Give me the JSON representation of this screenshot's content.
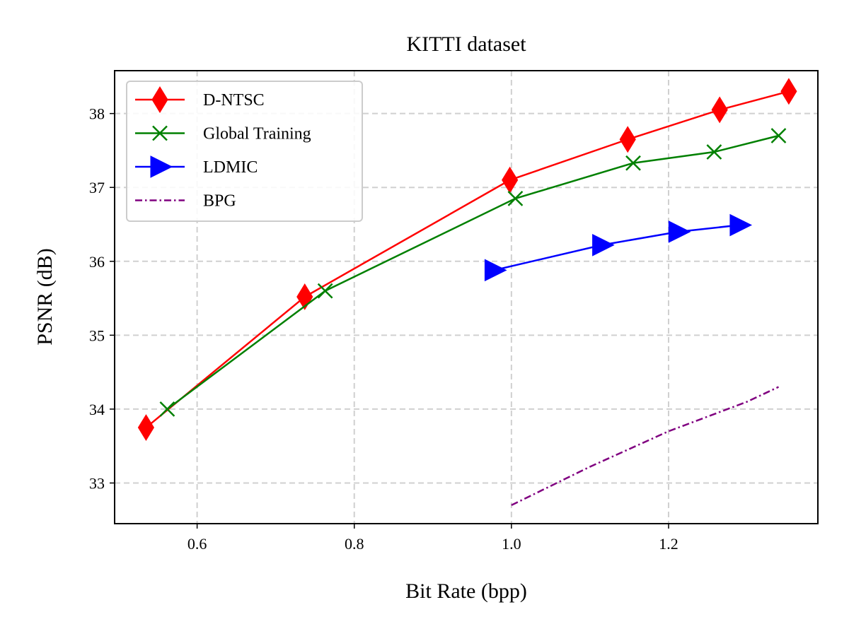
{
  "chart_data": {
    "type": "line",
    "title": "KITTI dataset",
    "xlabel": "Bit Rate (bpp)",
    "ylabel": "PSNR (dB)",
    "xlim": [
      0.495,
      1.39
    ],
    "ylim": [
      32.45,
      38.58
    ],
    "xticks": [
      0.6,
      0.8,
      1.0,
      1.2
    ],
    "xtick_labels": [
      "0.6",
      "0.8",
      "1.0",
      "1.2"
    ],
    "yticks": [
      33,
      34,
      35,
      36,
      37,
      38
    ],
    "ytick_labels": [
      "33",
      "34",
      "35",
      "36",
      "37",
      "38"
    ],
    "grid": true,
    "legend_position": "top-left",
    "series": [
      {
        "name": "D-NTSC",
        "color": "#ff0000",
        "marker": "thin-diamond",
        "linestyle": "solid",
        "x": [
          0.535,
          0.737,
          0.998,
          1.148,
          1.265,
          1.353
        ],
        "y": [
          33.75,
          35.52,
          37.1,
          37.65,
          38.05,
          38.3
        ]
      },
      {
        "name": "Global Training",
        "color": "#008000",
        "marker": "x",
        "linestyle": "solid",
        "x": [
          0.562,
          0.763,
          1.005,
          1.155,
          1.258,
          1.34
        ],
        "y": [
          34.0,
          35.6,
          36.85,
          37.33,
          37.48,
          37.7
        ]
      },
      {
        "name": "LDMIC",
        "color": "#0000ff",
        "marker": "triangle-right",
        "linestyle": "solid",
        "x": [
          0.978,
          1.115,
          1.212,
          1.29
        ],
        "y": [
          35.88,
          36.22,
          36.4,
          36.49
        ]
      },
      {
        "name": "BPG",
        "color": "#800080",
        "marker": "none",
        "linestyle": "dashdot",
        "x": [
          1.0,
          1.1,
          1.2,
          1.3,
          1.34
        ],
        "y": [
          32.7,
          33.22,
          33.7,
          34.1,
          34.3
        ]
      }
    ]
  }
}
